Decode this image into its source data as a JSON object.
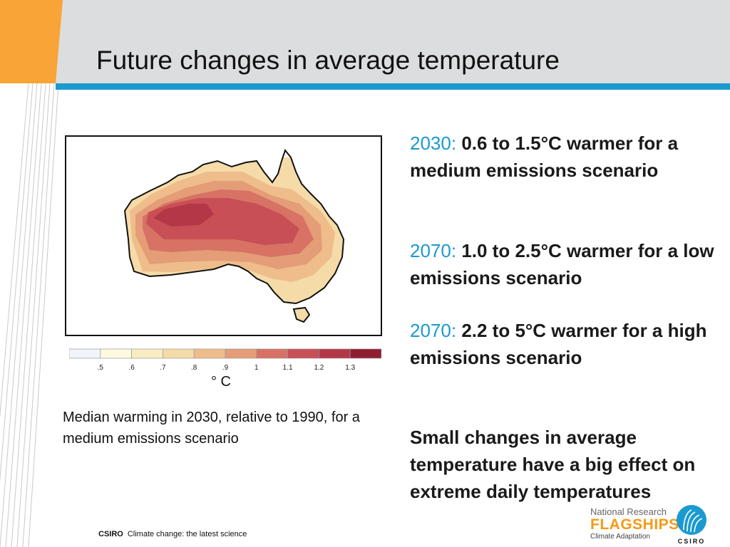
{
  "slide": {
    "title": "Future changes in average temperature",
    "colors": {
      "accent_blue": "#1b9ad0",
      "accent_orange": "#f9a436",
      "header_gray": "#dcdddf"
    }
  },
  "figure": {
    "name": "Median warming map of Australia",
    "legend_ticks": [
      ".5",
      ".6",
      ".7",
      ".8",
      ".9",
      "1",
      "1.1",
      "1.2",
      "1.3"
    ],
    "legend_colors": [
      "#f1f4f8",
      "#fdfae0",
      "#f9edc2",
      "#f5dba8",
      "#eebd8b",
      "#e49d77",
      "#d77264",
      "#c74f55",
      "#b43748",
      "#8e1d32"
    ],
    "unit": "° C",
    "caption": "Median warming in 2030, relative to 1990, for a medium emissions scenario"
  },
  "stats": [
    {
      "year": "2030:",
      "text": "0.6 to 1.5°C warmer for a medium emissions scenario"
    },
    {
      "year": "2070:",
      "text": "1.0 to 2.5°C warmer for a low emissions scenario"
    },
    {
      "year": "2070:",
      "text": "2.2 to 5°C warmer for a high emissions scenario"
    }
  ],
  "summary": "Small changes in average temperature have a big effect on extreme daily temperatures",
  "footer": {
    "brand": "CSIRO",
    "text": "Climate change: the latest science"
  },
  "logos": {
    "flagship_line1": "National Research",
    "flagship_line2": "FLAGSHIPS",
    "flagship_line3": "Climate Adaptation",
    "csiro_wordmark": "CSIRO"
  }
}
